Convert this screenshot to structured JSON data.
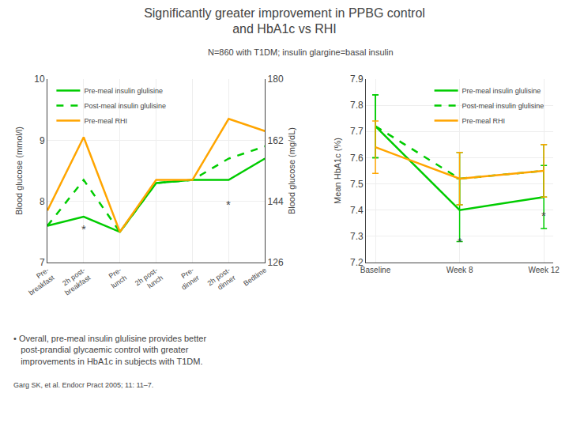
{
  "chart_data": [
    {
      "type": "line",
      "title": "Significantly greater improvement in PPBG control\nand HbA1c vs RHI",
      "subtitle": "N=860 with T1DM; insulin glargine=basal insulin",
      "categories": [
        "Pre-\nbreakfast",
        "2h post-\nbreakfast",
        "Pre-\nlunch",
        "2h post-\nlunch",
        "Pre-\ndinner",
        "2h post-\ndinner",
        "Bedtime"
      ],
      "ylabel": "Blood glucose (mmol/l)",
      "ylim": [
        7.0,
        10.0
      ],
      "yticks": [
        7,
        8,
        9,
        10
      ],
      "y2label": "Blood glucose (mg/dL)",
      "y2lim": [
        126,
        180
      ],
      "y2ticks": [
        126,
        144,
        162,
        180
      ],
      "legend": "upper left",
      "series": [
        {
          "name": "Pre-meal insulin glulisine",
          "color": "#00cc00",
          "line_style": "solid",
          "values": [
            7.6,
            7.75,
            7.5,
            8.3,
            8.35,
            8.35,
            8.7
          ]
        },
        {
          "name": "Post-meal insulin glulisine",
          "color": "#00cc00",
          "line_style": "dashed",
          "values": [
            7.6,
            8.35,
            7.5,
            8.3,
            8.35,
            8.7,
            8.9
          ]
        },
        {
          "name": "Pre-meal RHI",
          "color": "#ffa500",
          "line_style": "solid",
          "values": [
            7.85,
            9.05,
            7.5,
            8.35,
            8.35,
            9.35,
            9.15
          ]
        }
      ],
      "annotations": [
        {
          "text": "*",
          "x": 1,
          "y": 7.55
        },
        {
          "text": "*",
          "x": 5,
          "y": 7.95
        },
        {
          "text": "• Overall, pre-meal insulin glulisine provides better\n   post-prandial glycaemic control with greater\n   improvements in HbA1c in subjects with T1DM."
        },
        {
          "text": "Garg SK, et al. Endocr Pract 2005; 11: 11–7."
        }
      ]
    },
    {
      "type": "line",
      "categories": [
        "Baseline",
        "Week 8",
        "Week 12"
      ],
      "ylabel": "Mean HbA1c (%)",
      "ylim": [
        7.2,
        7.9
      ],
      "yticks": [
        7.2,
        7.3,
        7.4,
        7.5,
        7.6,
        7.7,
        7.8,
        7.9
      ],
      "legend": "upper right",
      "series": [
        {
          "name": "Pre-meal insulin glulisine",
          "color": "#00cc00",
          "line_style": "solid",
          "values": [
            7.72,
            7.4,
            7.45
          ],
          "errors": [
            0.12,
            0.12,
            0.12
          ]
        },
        {
          "name": "Post-meal insulin glulisine",
          "color": "#00cc00",
          "line_style": "dashed",
          "values": [
            7.72,
            7.52,
            7.55
          ],
          "errors": [
            0.12,
            0.1,
            0.1
          ]
        },
        {
          "name": "Pre-meal RHI",
          "color": "#ffa500",
          "line_style": "solid",
          "values": [
            7.64,
            7.52,
            7.55
          ],
          "errors": [
            0.1,
            0.1,
            0.1
          ]
        }
      ],
      "annotations": [
        {
          "text": "*",
          "x": 1,
          "y": 7.28
        },
        {
          "text": "*",
          "x": 2,
          "y": 7.38
        }
      ]
    }
  ]
}
